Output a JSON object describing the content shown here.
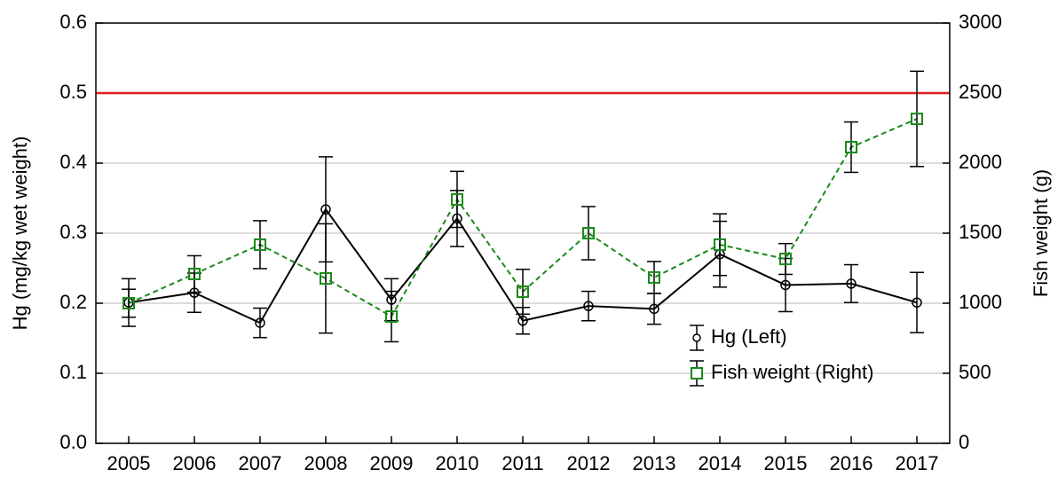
{
  "chart_data": {
    "type": "line",
    "categories": [
      "2005",
      "2006",
      "2007",
      "2008",
      "2009",
      "2010",
      "2011",
      "2012",
      "2013",
      "2014",
      "2015",
      "2016",
      "2017"
    ],
    "y_label": "Hg (mg/kg wet weight)",
    "y2_label": "Fish weight (g)",
    "ylim": [
      0,
      0.6
    ],
    "yticks": [
      {
        "value": 0,
        "label": "0.0"
      },
      0.1,
      0.2,
      0.3,
      0.4,
      0.5,
      0.6
    ],
    "y2lim": [
      0,
      3000
    ],
    "y2ticks": [
      0,
      500,
      1000,
      1500,
      2000,
      2500,
      3000
    ],
    "grid": true,
    "legend": "lower right",
    "reference_line": {
      "value": 0.5,
      "color": "#e31a1c"
    },
    "series": [
      {
        "name": "Hg (Left)",
        "color": "#000000",
        "marker": "circle",
        "dash": false,
        "values": [
          0.201,
          0.215,
          0.172,
          0.334,
          0.205,
          0.321,
          0.175,
          0.196,
          0.192,
          0.27,
          0.226,
          0.228,
          0.201
        ],
        "errors": [
          0.034,
          0.028,
          0.021,
          0.075,
          0.03,
          0.04,
          0.019,
          0.021,
          0.022,
          0.047,
          0.038,
          0.027,
          0.043
        ]
      },
      {
        "name": "Fish weight (Right)",
        "color": "#1a8a1a",
        "marker": "square",
        "dash": true,
        "axis": "y2",
        "values": [
          1000,
          1209,
          1418,
          1177,
          905,
          1741,
          1082,
          1500,
          1184,
          1418,
          1316,
          2114,
          2316
        ],
        "errors": [
          100,
          130,
          171,
          390,
          180,
          200,
          160,
          190,
          114,
          220,
          110,
          180,
          340
        ]
      }
    ]
  }
}
